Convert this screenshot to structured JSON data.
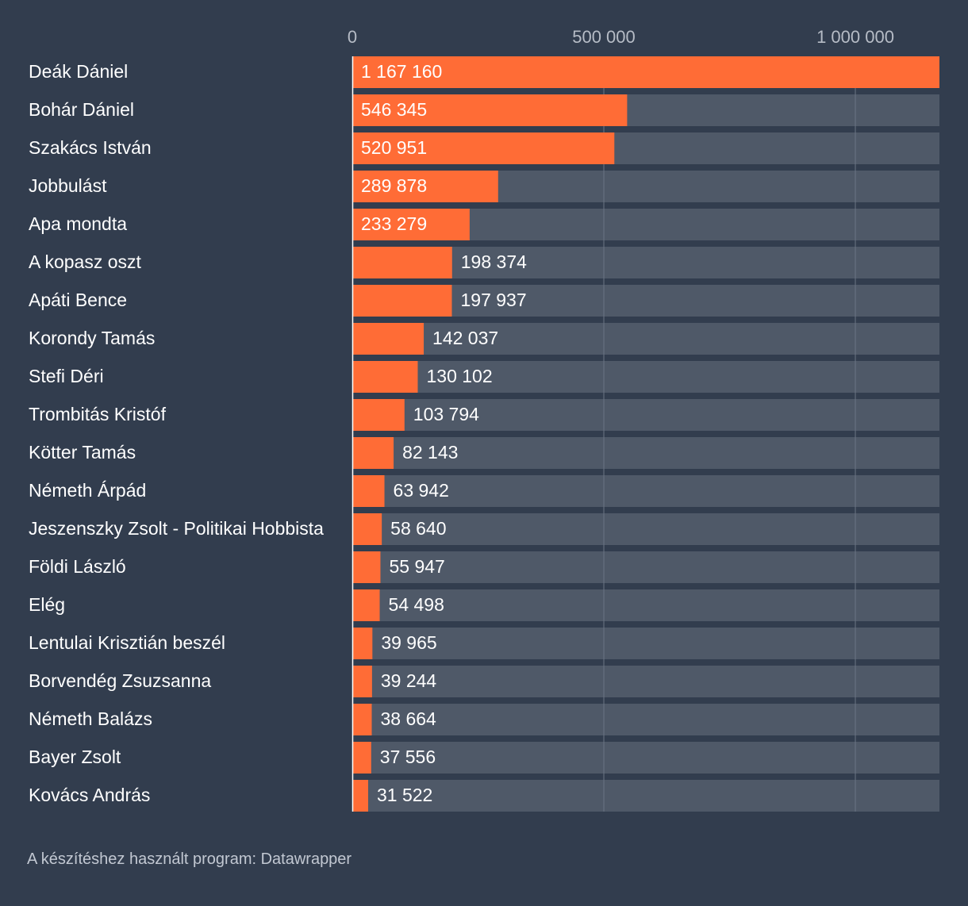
{
  "chart_data": {
    "type": "bar",
    "orientation": "horizontal",
    "categories": [
      "Deák Dániel",
      "Bohár Dániel",
      "Szakács István",
      "Jobbulást",
      "Apa mondta",
      "A kopasz oszt",
      "Apáti Bence",
      "Korondy Tamás",
      "Stefi Déri",
      "Trombitás Kristóf",
      "Kötter Tamás",
      "Németh Árpád",
      "Jeszenszky Zsolt - Politikai Hobbista",
      "Földi László",
      "Elég",
      "Lentulai Krisztián beszél",
      "Borvendég Zsuzsanna",
      "Németh Balázs",
      "Bayer Zsolt",
      "Kovács András"
    ],
    "values": [
      1167160,
      546345,
      520951,
      289878,
      233279,
      198374,
      197937,
      142037,
      130102,
      103794,
      82143,
      63942,
      58640,
      55947,
      54498,
      39965,
      39244,
      38664,
      37556,
      31522
    ],
    "value_labels": [
      "1 167 160",
      "546 345",
      "520 951",
      "289 878",
      "233 279",
      "198 374",
      "197 937",
      "142 037",
      "130 102",
      "103 794",
      "82 143",
      "63 942",
      "58 640",
      "55 947",
      "54 498",
      "39 965",
      "39 244",
      "38 664",
      "37 556",
      "31 522"
    ],
    "x_ticks": [
      0,
      500000,
      1000000
    ],
    "x_tick_labels": [
      "0",
      "500 000",
      "1 000 000"
    ],
    "xlim": [
      0,
      1167160
    ],
    "title": "",
    "xlabel": "",
    "ylabel": "",
    "colors": {
      "bar": "#ff6c36",
      "track": "#4f5968",
      "background": "#323d4e",
      "grid": "#6b7585"
    }
  },
  "footer": {
    "source_text": "A készítéshez használt program: Datawrapper"
  }
}
